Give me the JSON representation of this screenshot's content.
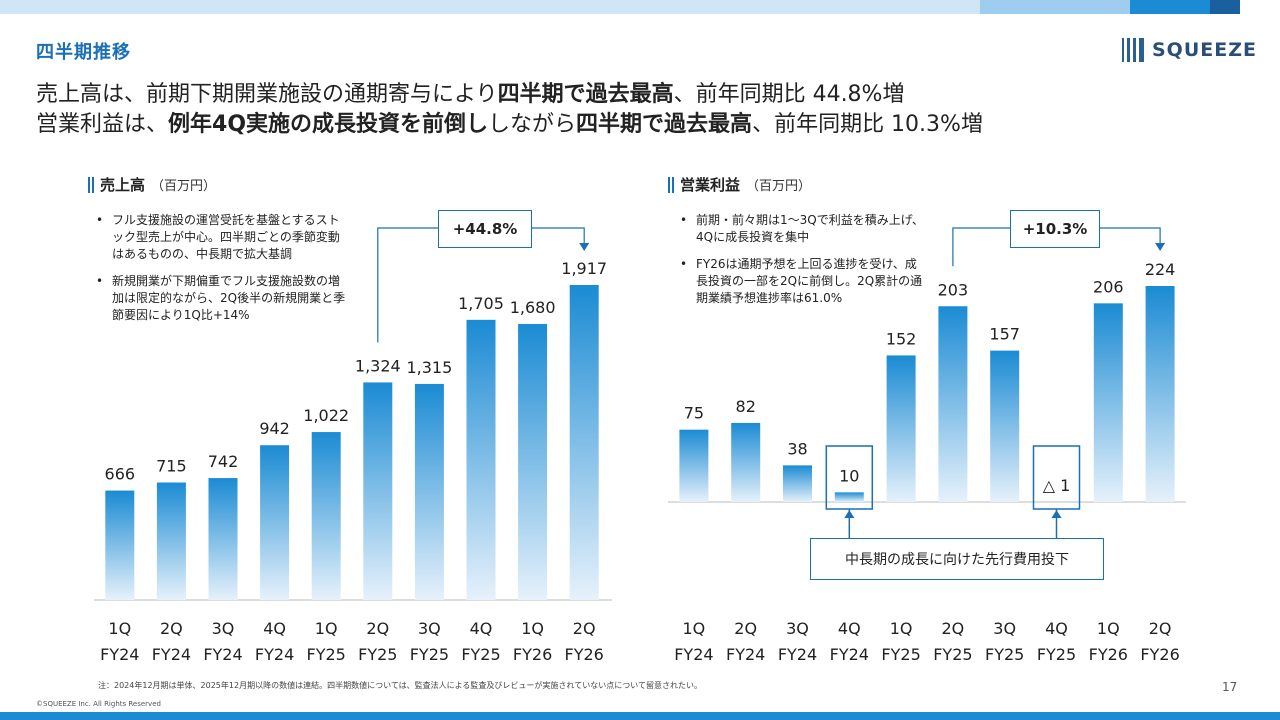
{
  "colors": {
    "brand": "#1a6fb5",
    "bar_top": "#1b8bd3",
    "bar_bottom": "#e6f1fb",
    "bracket": "#1a6fb5"
  },
  "header": {
    "section_title": "四半期推移",
    "logo_text": "SQUEEZE",
    "headline1": {
      "p1": "売上高は、前期下期開業施設の通期寄与により",
      "b1": "四半期で過去最高",
      "p2": "、前年同期比 44.8%増"
    },
    "headline2": {
      "p1": "営業利益は、",
      "b1": "例年4Q実施の成長投資を前倒し",
      "p2": "しながら",
      "b2": "四半期で過去最高",
      "p3": "、前年同期比 10.3%増"
    }
  },
  "revenue": {
    "title": "売上高",
    "unit": "（百万円）",
    "notes": [
      "フル支援施設の運営受託を基盤とするストック型売上が中心。四半期ごとの季節変動はあるものの、中長期で拡大基調",
      "新規開業が下期偏重でフル支援施設数の増加は限定的ながら、2Q後半の新規開業と季節要因により1Q比+14%"
    ],
    "growth_label": "+44.8%"
  },
  "profit": {
    "title": "営業利益",
    "unit": "（百万円）",
    "notes": [
      "前期・前々期は1〜3Qで利益を積み上げ、4Qに成長投資を集中",
      "FY26は通期予想を上回る進捗を受け、成長投資の一部を2Qに前倒し。2Q累計の通期業績予想進捗率は61.0%"
    ],
    "growth_label": "+10.3%",
    "investment_label": "中長期の成長に向けた先行費用投下"
  },
  "chart_data": [
    {
      "type": "bar",
      "categories": [
        [
          "1Q",
          "FY24"
        ],
        [
          "2Q",
          "FY24"
        ],
        [
          "3Q",
          "FY24"
        ],
        [
          "4Q",
          "FY24"
        ],
        [
          "1Q",
          "FY25"
        ],
        [
          "2Q",
          "FY25"
        ],
        [
          "3Q",
          "FY25"
        ],
        [
          "4Q",
          "FY25"
        ],
        [
          "1Q",
          "FY26"
        ],
        [
          "2Q",
          "FY26"
        ]
      ],
      "values": [
        666,
        715,
        742,
        942,
        1022,
        1324,
        1315,
        1705,
        1680,
        1917
      ],
      "value_labels": [
        "666",
        "715",
        "742",
        "942",
        "1,022",
        "1,324",
        "1,315",
        "1,705",
        "1,680",
        "1,917"
      ],
      "title": "売上高",
      "ylabel": "（百万円）",
      "ylim": [
        0,
        2200
      ],
      "grid": false
    },
    {
      "type": "bar",
      "categories": [
        [
          "1Q",
          "FY24"
        ],
        [
          "2Q",
          "FY24"
        ],
        [
          "3Q",
          "FY24"
        ],
        [
          "4Q",
          "FY24"
        ],
        [
          "1Q",
          "FY25"
        ],
        [
          "2Q",
          "FY25"
        ],
        [
          "3Q",
          "FY25"
        ],
        [
          "4Q",
          "FY25"
        ],
        [
          "1Q",
          "FY26"
        ],
        [
          "2Q",
          "FY26"
        ]
      ],
      "values": [
        75,
        82,
        38,
        10,
        152,
        203,
        157,
        -1,
        206,
        224
      ],
      "value_labels": [
        "75",
        "82",
        "38",
        "10",
        "152",
        "203",
        "157",
        "△ 1",
        "206",
        "224"
      ],
      "title": "営業利益",
      "ylabel": "（百万円）",
      "ylim": [
        0,
        280
      ],
      "grid": false
    }
  ],
  "footer": {
    "footnote": "注：2024年12月期は単体、2025年12月期以降の数値は連結。四半期数値については、監査法人による監査及びレビューが実施されていない点について留意されたい。",
    "copyright": "©SQUEEZE Inc. All Rights Reserved",
    "page": "17"
  }
}
